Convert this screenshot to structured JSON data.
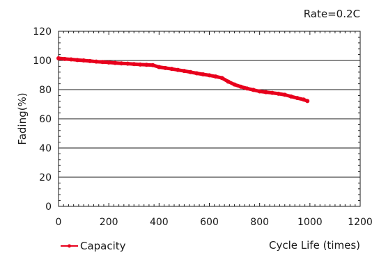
{
  "chart_data": {
    "type": "line",
    "title": "",
    "annotation": "Rate=0.2C",
    "xlabel": "Cycle Life (times)",
    "ylabel": "Fading(%)",
    "xlim": [
      0,
      1200
    ],
    "ylim": [
      0,
      120
    ],
    "x_ticks": [
      "0",
      "200",
      "400",
      "600",
      "800",
      "1000",
      "1200"
    ],
    "y_ticks": [
      "0",
      "20",
      "40",
      "60",
      "80",
      "100",
      "120"
    ],
    "grid": "horizontal",
    "legend_placement": "bottom-left",
    "series": [
      {
        "name": "Capacity",
        "color": "#e8001c",
        "x": [
          0,
          25,
          50,
          75,
          100,
          125,
          150,
          175,
          200,
          225,
          250,
          275,
          300,
          325,
          350,
          375,
          400,
          425,
          450,
          475,
          500,
          525,
          550,
          575,
          600,
          625,
          650,
          675,
          700,
          725,
          750,
          775,
          800,
          825,
          850,
          875,
          900,
          925,
          950,
          975,
          990
        ],
        "y": [
          101.5,
          101,
          100.7,
          100.3,
          100,
          99.6,
          99.2,
          98.9,
          98.6,
          98.3,
          98,
          97.8,
          97.5,
          97.2,
          97,
          96.8,
          95.5,
          94.8,
          94.2,
          93.5,
          92.8,
          92,
          91.2,
          90.5,
          89.8,
          89,
          88,
          85.5,
          83.5,
          82,
          80.8,
          79.8,
          78.8,
          78.3,
          77.8,
          77.2,
          76.5,
          75.3,
          74.2,
          73.2,
          72.2
        ]
      }
    ]
  }
}
